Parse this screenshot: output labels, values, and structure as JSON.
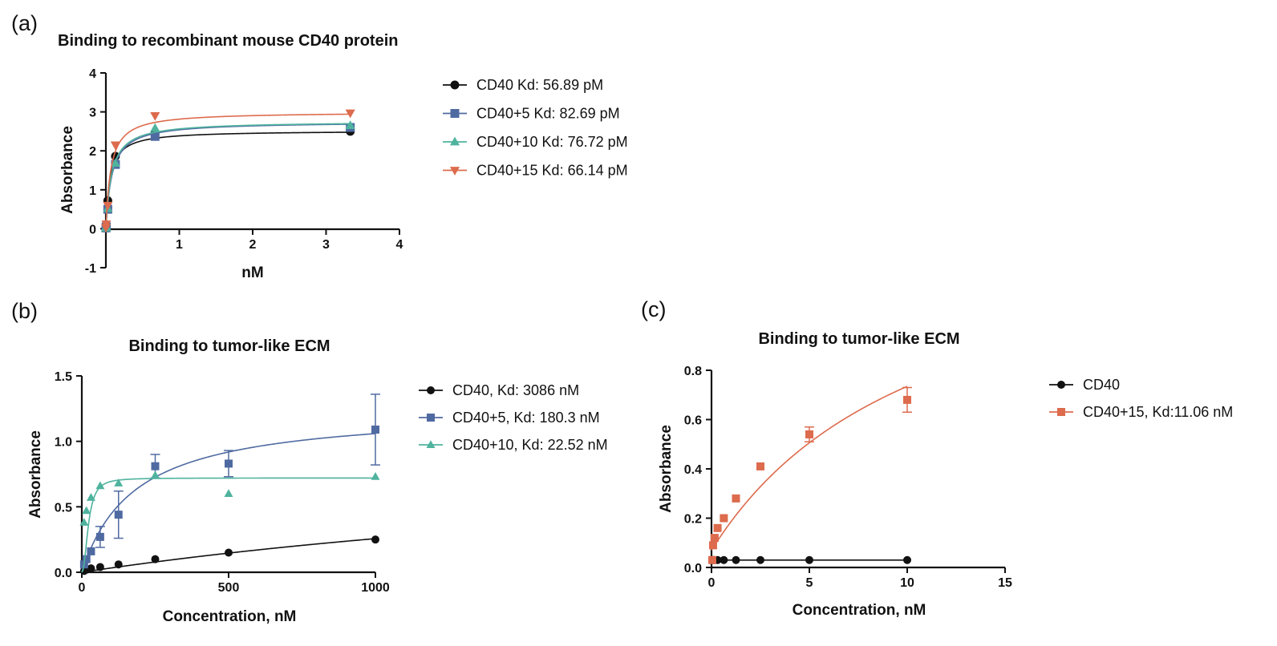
{
  "chart_data": [
    {
      "panel_label": "(a)",
      "type": "scatter",
      "title": "Binding to recombinant mouse CD40 protein",
      "xlabel": "nM",
      "ylabel": "Absorbance",
      "xlim": [
        0,
        4
      ],
      "ylim": [
        -1,
        4
      ],
      "xticks": [
        1,
        2,
        3,
        4
      ],
      "yticks": [
        -1,
        0,
        1,
        2,
        3,
        4
      ],
      "legend_position": "right",
      "series": [
        {
          "name": "CD40 Kd: 56.89 pM",
          "color": "#111111",
          "marker": "circle",
          "x": [
            0.001,
            0.005,
            0.026,
            0.13,
            0.67,
            3.33
          ],
          "y": [
            0.03,
            0.1,
            0.72,
            1.86,
            2.45,
            2.5
          ],
          "fit_kd": 0.05689,
          "fit_bmax": 2.52
        },
        {
          "name": "CD40+5 Kd: 82.69 pM",
          "color": "#4f6aa1",
          "marker": "square",
          "x": [
            0.001,
            0.005,
            0.026,
            0.13,
            0.67,
            3.33
          ],
          "y": [
            0.02,
            0.05,
            0.5,
            1.65,
            2.37,
            2.6
          ],
          "fit_kd": 0.08269,
          "fit_bmax": 2.75
        },
        {
          "name": "CD40+10 Kd: 76.72 pM",
          "color": "#4fb39e",
          "marker": "triangle-up",
          "x": [
            0.001,
            0.005,
            0.026,
            0.13,
            0.67,
            3.33
          ],
          "y": [
            0.02,
            0.05,
            0.52,
            1.68,
            2.58,
            2.65
          ],
          "fit_kd": 0.07672,
          "fit_bmax": 2.76
        },
        {
          "name": "CD40+15 Kd: 66.14 pM",
          "color": "#dd6b4d",
          "marker": "triangle-down",
          "x": [
            0.001,
            0.005,
            0.026,
            0.13,
            0.67,
            3.33
          ],
          "y": [
            0.03,
            0.12,
            0.6,
            2.15,
            2.9,
            2.97
          ],
          "fit_kd": 0.06614,
          "fit_bmax": 3.0
        }
      ]
    },
    {
      "panel_label": "(b)",
      "type": "scatter",
      "title": "Binding to tumor-like ECM",
      "xlabel": "Concentration, nM",
      "ylabel": "Absorbance",
      "xlim": [
        0,
        1000
      ],
      "ylim": [
        0,
        1.5
      ],
      "xticks": [
        0,
        500,
        1000
      ],
      "yticks": [
        0.0,
        0.5,
        1.0,
        1.5
      ],
      "ytick_labels": [
        "0.0",
        "0.5",
        "1.0",
        "1.5"
      ],
      "legend_position": "right",
      "series": [
        {
          "name": "CD40, Kd: 3086 nM",
          "color": "#111111",
          "marker": "circle",
          "x": [
            7.8,
            15.6,
            31.25,
            62.5,
            125,
            250,
            500,
            1000
          ],
          "y": [
            0.01,
            0.02,
            0.03,
            0.04,
            0.06,
            0.1,
            0.15,
            0.25
          ],
          "fit_kd": 3086,
          "fit_bmax": 1.05
        },
        {
          "name": "CD40+5, Kd: 180.3 nM",
          "color": "#4f6aa1",
          "marker": "square",
          "x": [
            7.8,
            15.6,
            31.25,
            62.5,
            125,
            250,
            500,
            1000
          ],
          "y": [
            0.06,
            0.1,
            0.16,
            0.27,
            0.44,
            0.81,
            0.83,
            1.09
          ],
          "err": [
            0,
            0,
            0,
            0.08,
            0.18,
            0.09,
            0.1,
            0.27
          ],
          "fit_kd": 180.3,
          "fit_bmax": 1.25
        },
        {
          "name": "CD40+10, Kd: 22.52 nM",
          "color": "#4fb39e",
          "marker": "triangle-up",
          "x": [
            7.8,
            15.6,
            31.25,
            62.5,
            125,
            250,
            500,
            1000
          ],
          "y": [
            0.38,
            0.47,
            0.57,
            0.66,
            0.68,
            0.74,
            0.6,
            0.73
          ],
          "fit_kd": 22.52,
          "fit_bmax": 0.72,
          "fit_hill": 2.2
        }
      ]
    },
    {
      "panel_label": "(c)",
      "type": "scatter",
      "title": "Binding to tumor-like ECM",
      "xlabel": "Concentration, nM",
      "ylabel": "Absorbance",
      "xlim": [
        0,
        15
      ],
      "ylim": [
        0,
        0.8
      ],
      "xticks": [
        0,
        5,
        10,
        15
      ],
      "yticks": [
        0.0,
        0.2,
        0.4,
        0.6,
        0.8
      ],
      "ytick_labels": [
        "0.0",
        "0.2",
        "0.4",
        "0.6",
        "0.8"
      ],
      "legend_position": "right",
      "series": [
        {
          "name": "CD40",
          "color": "#111111",
          "marker": "circle",
          "x": [
            0.04,
            0.08,
            0.16,
            0.31,
            0.63,
            1.25,
            2.5,
            5,
            10
          ],
          "y": [
            0.03,
            0.03,
            0.03,
            0.03,
            0.03,
            0.03,
            0.03,
            0.03,
            0.03
          ],
          "fit_kd": 1,
          "fit_bmax": 0.0
        },
        {
          "name": "CD40+15, Kd:11.06 nM",
          "color": "#dd6b4d",
          "marker": "square",
          "x": [
            0.04,
            0.08,
            0.16,
            0.31,
            0.63,
            1.25,
            2.5,
            5,
            10
          ],
          "y": [
            0.03,
            0.09,
            0.12,
            0.16,
            0.2,
            0.28,
            0.41,
            0.54,
            0.68
          ],
          "err": [
            0,
            0,
            0,
            0,
            0,
            0,
            0,
            0.03,
            0.05
          ],
          "fit_kd": 11.06,
          "fit_bmax": 1.4,
          "fit_offset": 0.07
        }
      ]
    }
  ]
}
